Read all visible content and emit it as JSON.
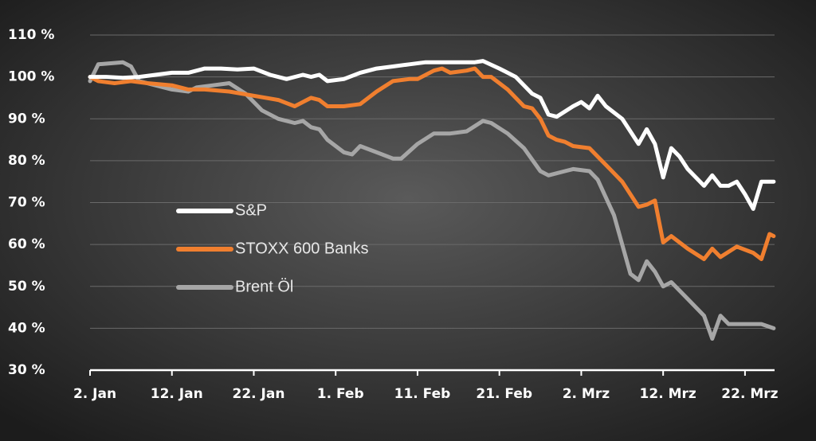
{
  "chart_data": {
    "type": "line",
    "xlim": [
      0,
      84
    ],
    "xticks": [
      {
        "value": 0,
        "label": "2. Jan"
      },
      {
        "value": 10,
        "label": "12. Jan"
      },
      {
        "value": 20,
        "label": "22. Jan"
      },
      {
        "value": 30,
        "label": "1. Feb"
      },
      {
        "value": 40,
        "label": "11. Feb"
      },
      {
        "value": 50,
        "label": "21. Feb"
      },
      {
        "value": 60,
        "label": "2. Mrz"
      },
      {
        "value": 70,
        "label": "12. Mrz"
      },
      {
        "value": 80,
        "label": "22. Mrz"
      }
    ],
    "ylim": [
      30,
      110
    ],
    "yticks": [
      {
        "value": 30,
        "label": "30 %"
      },
      {
        "value": 40,
        "label": "40 %"
      },
      {
        "value": 50,
        "label": "50 %"
      },
      {
        "value": 60,
        "label": "60 %"
      },
      {
        "value": 70,
        "label": "70 %"
      },
      {
        "value": 80,
        "label": "80 %"
      },
      {
        "value": 90,
        "label": "90 %"
      },
      {
        "value": 100,
        "label": "100 %"
      },
      {
        "value": 110,
        "label": "110 %"
      }
    ],
    "grid": true,
    "legend_position": "center-left",
    "series": [
      {
        "name": "S&P",
        "color": "#ffffff",
        "x": [
          0,
          2,
          4,
          6,
          8,
          10,
          12,
          14,
          16,
          18,
          20,
          22,
          24,
          26,
          27,
          28,
          29,
          31,
          33,
          35,
          37,
          39,
          41,
          43,
          45,
          47,
          48,
          50,
          52,
          54,
          55,
          56,
          57,
          59,
          60,
          61,
          62,
          63,
          65,
          67,
          68,
          69,
          70,
          71,
          72,
          73,
          75,
          76,
          77,
          78,
          79,
          80,
          81,
          82,
          83.5
        ],
        "values": [
          100,
          100,
          99.8,
          100,
          100.5,
          101,
          101,
          102,
          102,
          101.8,
          102,
          100.5,
          99.5,
          100.5,
          100,
          100.5,
          99,
          99.5,
          101,
          102,
          102.5,
          103,
          103.5,
          103.5,
          103.5,
          103.5,
          103.8,
          102,
          100,
          96,
          95,
          91,
          90.5,
          93,
          94,
          92.5,
          95.5,
          93,
          90,
          84,
          87.5,
          84,
          76,
          83,
          81,
          78,
          74,
          76.5,
          74,
          74,
          75,
          72,
          68.5,
          75,
          75
        ]
      },
      {
        "name": "STOXX 600 Banks",
        "color": "#f07f2f",
        "x": [
          0,
          1,
          3,
          5,
          7,
          10,
          12,
          14,
          17,
          20,
          23,
          25,
          27,
          28,
          29,
          31,
          33,
          35,
          37,
          39,
          40,
          42,
          43,
          44,
          46,
          47,
          48,
          49,
          51,
          53,
          54,
          55,
          56,
          57,
          58,
          59,
          61,
          63,
          65,
          67,
          68,
          69,
          70,
          71,
          73,
          75,
          76,
          77,
          79,
          81,
          82,
          83,
          83.5
        ],
        "values": [
          100,
          99,
          98.5,
          99,
          98.5,
          98,
          97,
          97,
          96.5,
          95.5,
          94.5,
          93,
          95,
          94.5,
          93,
          93,
          93.5,
          96.5,
          99,
          99.5,
          99.5,
          101.5,
          102,
          101,
          101.5,
          102,
          100,
          100,
          97,
          93,
          92.5,
          90,
          86,
          85,
          84.5,
          83.5,
          83,
          79,
          75,
          69,
          69.5,
          70.5,
          60.5,
          62,
          59,
          56.5,
          59,
          57,
          59.5,
          58,
          56.5,
          62.5,
          62
        ]
      },
      {
        "name": "Brent Öl",
        "color": "#a6a6a6",
        "x": [
          0,
          1,
          4,
          5,
          6,
          8,
          10,
          12,
          13,
          15,
          17,
          19,
          21,
          23,
          25,
          26,
          27,
          28,
          29,
          31,
          32,
          33,
          35,
          37,
          38,
          40,
          42,
          44,
          46,
          48,
          49,
          51,
          53,
          55,
          56,
          58,
          59,
          61,
          62,
          64,
          66,
          67,
          68,
          69,
          70,
          71,
          73,
          75,
          76,
          77,
          78,
          80,
          82,
          83.5
        ],
        "values": [
          99,
          103,
          103.5,
          102.5,
          99,
          98,
          97,
          96.5,
          97.5,
          98,
          98.5,
          96,
          92,
          90,
          89,
          89.5,
          88,
          87.5,
          85,
          82,
          81.5,
          83.5,
          82,
          80.5,
          80.5,
          84,
          86.5,
          86.5,
          87,
          89.5,
          89,
          86.5,
          83,
          77.5,
          76.5,
          77.5,
          78,
          77.5,
          75.5,
          67,
          53,
          51.5,
          56,
          53.5,
          50,
          51,
          47,
          43,
          37.5,
          43,
          41,
          41,
          41,
          40
        ]
      }
    ]
  }
}
